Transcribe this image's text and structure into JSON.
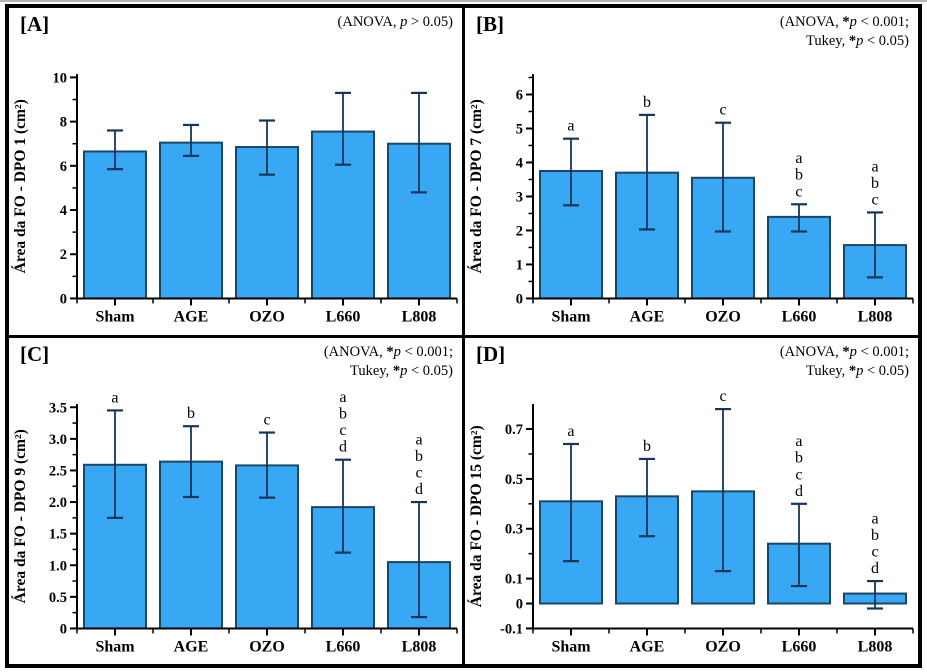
{
  "figure": {
    "bar_fill": "#38a8f4",
    "bar_stroke": "#1c4667",
    "error_color": "#15355a",
    "axis_color": "#000000",
    "text_color": "#000000"
  },
  "chart_data": [
    {
      "type": "bar",
      "panel_label": "[A]",
      "annotation_lines": [
        "(ANOVA, p > 0.05)"
      ],
      "ylabel": "Área da FO - DPO 1 (cm²)",
      "categories": [
        "Sham",
        "AGE",
        "OZO",
        "L660",
        "L808"
      ],
      "values": [
        6.65,
        7.05,
        6.85,
        7.55,
        7.0
      ],
      "err_low": [
        5.85,
        6.45,
        5.6,
        6.05,
        4.8
      ],
      "err_high": [
        7.6,
        7.85,
        8.05,
        9.3,
        9.3
      ],
      "sig_letters": [
        [],
        [],
        [],
        [],
        []
      ],
      "ylim": [
        0,
        10.15
      ],
      "yticks": [
        0,
        2,
        4,
        6,
        8,
        10
      ],
      "ytick_labels": [
        "0",
        "2",
        "4",
        "6",
        "8",
        "10"
      ],
      "yticks_minor": [
        1,
        3,
        5,
        7,
        9
      ],
      "grid": false,
      "legend": "none"
    },
    {
      "type": "bar",
      "panel_label": "[B]",
      "annotation_lines": [
        "(ANOVA, *p < 0.001;",
        "Tukey, *p < 0.05)"
      ],
      "ylabel": "Área da FO - DPO 7 (cm²)",
      "categories": [
        "Sham",
        "AGE",
        "OZO",
        "L660",
        "L808"
      ],
      "values": [
        3.75,
        3.7,
        3.55,
        2.4,
        1.57
      ],
      "err_low": [
        2.74,
        2.03,
        1.97,
        1.97,
        0.62
      ],
      "err_high": [
        4.7,
        5.4,
        5.17,
        2.77,
        2.53
      ],
      "sig_letters": [
        [
          "a"
        ],
        [
          "b"
        ],
        [
          "c"
        ],
        [
          "a",
          "b",
          "c"
        ],
        [
          "a",
          "b",
          "c"
        ]
      ],
      "ylim": [
        0,
        6.6
      ],
      "yticks": [
        0,
        1,
        2,
        3,
        4,
        5,
        6
      ],
      "ytick_labels": [
        "0",
        "1",
        "2",
        "3",
        "4",
        "5",
        "6"
      ],
      "yticks_minor": [
        0.5,
        1.5,
        2.5,
        3.5,
        4.5,
        5.5,
        6.5
      ],
      "grid": false,
      "legend": "none"
    },
    {
      "type": "bar",
      "panel_label": "[C]",
      "annotation_lines": [
        "(ANOVA, *p < 0.001;",
        "Tukey, *p < 0.05)"
      ],
      "ylabel": "Área da FO - DPO 9 (cm²)",
      "categories": [
        "Sham",
        "AGE",
        "OZO",
        "L660",
        "L808"
      ],
      "values": [
        2.59,
        2.64,
        2.58,
        1.92,
        1.05
      ],
      "err_low": [
        1.75,
        2.08,
        2.07,
        1.2,
        0.18
      ],
      "err_high": [
        3.45,
        3.2,
        3.1,
        2.67,
        2.0
      ],
      "sig_letters": [
        [
          "a"
        ],
        [
          "b"
        ],
        [
          "c"
        ],
        [
          "a",
          "b",
          "c",
          "d"
        ],
        [
          "a",
          "b",
          "c",
          "d"
        ]
      ],
      "ylim": [
        0,
        3.55
      ],
      "yticks": [
        0,
        0.5,
        1.0,
        1.5,
        2.0,
        2.5,
        3.0,
        3.5
      ],
      "ytick_labels": [
        "0",
        "0.5",
        "1.0",
        "1.5",
        "2.0",
        "2.5",
        "3.0",
        "3.5"
      ],
      "yticks_minor": [
        0.25,
        0.75,
        1.25,
        1.75,
        2.25,
        2.75,
        3.25
      ],
      "grid": false,
      "legend": "none"
    },
    {
      "type": "bar",
      "panel_label": "[D]",
      "annotation_lines": [
        "(ANOVA, *p < 0.001;",
        "Tukey, *p < 0.05)"
      ],
      "ylabel": "Área da FO - DPO 15 (cm²)",
      "categories": [
        "Sham",
        "AGE",
        "OZO",
        "L660",
        "L808"
      ],
      "values": [
        0.41,
        0.43,
        0.45,
        0.24,
        0.04
      ],
      "err_low": [
        0.17,
        0.27,
        0.13,
        0.07,
        -0.02
      ],
      "err_high": [
        0.64,
        0.58,
        0.78,
        0.4,
        0.09
      ],
      "sig_letters": [
        [
          "a"
        ],
        [
          "b"
        ],
        [
          "c"
        ],
        [
          "a",
          "b",
          "c",
          "d"
        ],
        [
          "a",
          "b",
          "c",
          "d"
        ]
      ],
      "ylim": [
        -0.1,
        0.8
      ],
      "yticks": [
        -0.1,
        0,
        0.1,
        0.3,
        0.5,
        0.7
      ],
      "ytick_labels": [
        "-0.1",
        "0",
        "0.1",
        "0.3",
        "0.5",
        "0.7"
      ],
      "yticks_minor": [
        0.2,
        0.4,
        0.6
      ],
      "grid": false,
      "legend": "none"
    }
  ]
}
